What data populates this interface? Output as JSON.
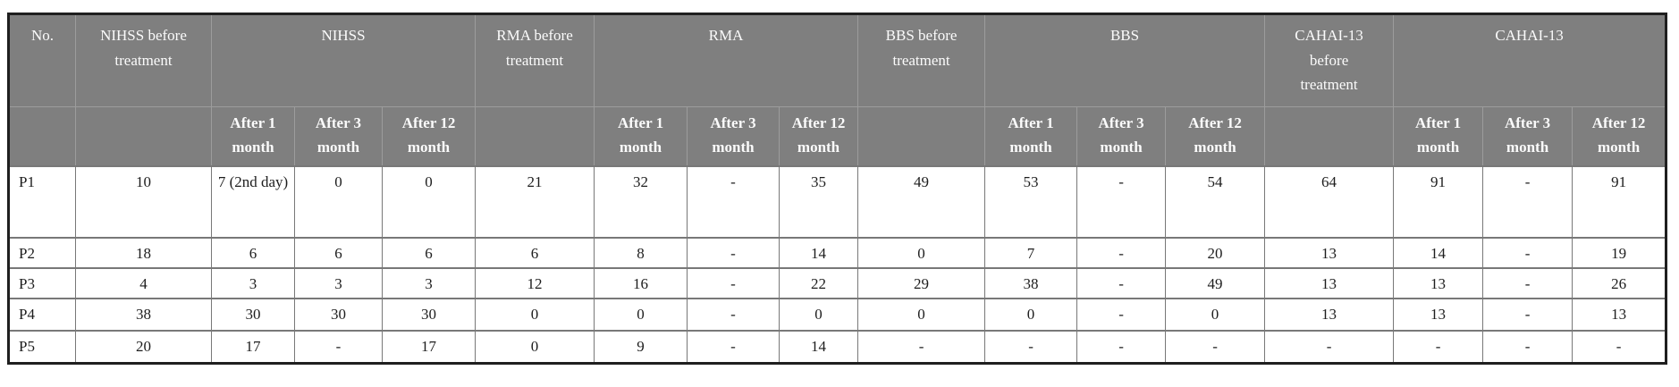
{
  "table": {
    "columns": {
      "no": "No.",
      "nihss_before": "NIHSS before treatment",
      "nihss_group": "NIHSS",
      "rma_before": "RMA before treatment",
      "rma_group": "RMA",
      "bbs_before": "BBS before treatment",
      "bbs_group": "BBS",
      "cahai_before": "CAHAI-13 before treatment",
      "cahai_group": "CAHAI-13"
    },
    "sub_headers": [
      "After 1 month",
      "After 3 month",
      "After 12 month"
    ],
    "rows": [
      {
        "label": "P1",
        "values": [
          "10",
          "7 (2nd day)",
          "0",
          "0",
          "21",
          "32",
          "-",
          "35",
          "49",
          "53",
          "-",
          "54",
          "64",
          "91",
          "-",
          "91"
        ]
      },
      {
        "label": "P2",
        "values": [
          "18",
          "6",
          "6",
          "6",
          "6",
          "8",
          "-",
          "14",
          "0",
          "7",
          "-",
          "20",
          "13",
          "14",
          "-",
          "19"
        ]
      },
      {
        "label": "P3",
        "values": [
          "4",
          "3",
          "3",
          "3",
          "12",
          "16",
          "-",
          "22",
          "29",
          "38",
          "-",
          "49",
          "13",
          "13",
          "-",
          "26"
        ]
      },
      {
        "label": "P4",
        "values": [
          "38",
          "30",
          "30",
          "30",
          "0",
          "0",
          "-",
          "0",
          "0",
          "0",
          "-",
          "0",
          "13",
          "13",
          "-",
          "13"
        ]
      },
      {
        "label": "P5",
        "values": [
          "20",
          "17",
          "-",
          "17",
          "0",
          "9",
          "-",
          "14",
          "-",
          "-",
          "-",
          "-",
          "-",
          "-",
          "-",
          "-"
        ]
      }
    ],
    "colors": {
      "header_bg": "#7f7f7f",
      "header_text": "#fbfbfb",
      "body_text": "#1d1d1d",
      "grid_line": "#787878",
      "header_grid_line": "#9c9c9c",
      "outer_border": "#1f1f1f"
    }
  }
}
